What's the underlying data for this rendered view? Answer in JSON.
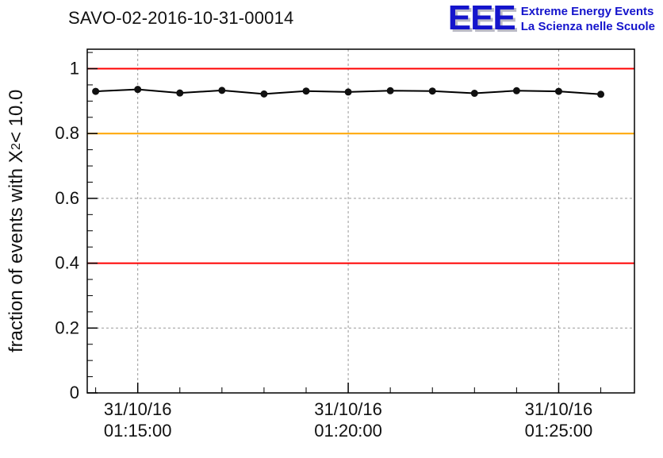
{
  "header": {
    "title": "SAVO-02-2016-10-31-00014",
    "logo": {
      "text": "EEE",
      "line1": "Extreme Energy Events",
      "line2": "La Scienza nelle Scuole",
      "color": "#1414cc"
    }
  },
  "ylabel": {
    "prefix": "fraction of events with X",
    "sup": "2",
    "suffix": " < 10.0"
  },
  "chart_data": {
    "type": "line",
    "title": "SAVO-02-2016-10-31-00014",
    "ylabel": "fraction of events with X^2 < 10.0",
    "xlabel": "",
    "ylim": [
      0,
      1.06
    ],
    "y_ticks": [
      0,
      0.2,
      0.4,
      0.6,
      0.8,
      1
    ],
    "y_minor_step": 0.05,
    "xlim_minutes": [
      73.8,
      86.8
    ],
    "x_minor_step": 1,
    "x_ticks": [
      {
        "minute": 75,
        "label_date": "31/10/16",
        "label_time": "01:15:00"
      },
      {
        "minute": 80,
        "label_date": "31/10/16",
        "label_time": "01:20:00"
      },
      {
        "minute": 85,
        "label_date": "31/10/16",
        "label_time": "01:25:00"
      }
    ],
    "grid": true,
    "grid_color": "#999999",
    "frame_color": "#000000",
    "ref_lines": [
      {
        "y": 1.0,
        "color": "#ff0000"
      },
      {
        "y": 0.8,
        "color": "#ffa500"
      },
      {
        "y": 0.4,
        "color": "#ff0000"
      }
    ],
    "series": [
      {
        "name": "fraction of events with chi2 < 10",
        "color": "#000000",
        "marker": "circle",
        "points": [
          {
            "time": "01:14:00",
            "minute": 74,
            "value": 0.93
          },
          {
            "time": "01:15:00",
            "minute": 75,
            "value": 0.936
          },
          {
            "time": "01:16:00",
            "minute": 76,
            "value": 0.925
          },
          {
            "time": "01:17:00",
            "minute": 77,
            "value": 0.933
          },
          {
            "time": "01:18:00",
            "minute": 78,
            "value": 0.922
          },
          {
            "time": "01:19:00",
            "minute": 79,
            "value": 0.931
          },
          {
            "time": "01:20:00",
            "minute": 80,
            "value": 0.928
          },
          {
            "time": "01:21:00",
            "minute": 81,
            "value": 0.932
          },
          {
            "time": "01:22:00",
            "minute": 82,
            "value": 0.931
          },
          {
            "time": "01:23:00",
            "minute": 83,
            "value": 0.924
          },
          {
            "time": "01:24:00",
            "minute": 84,
            "value": 0.932
          },
          {
            "time": "01:25:00",
            "minute": 85,
            "value": 0.93
          },
          {
            "time": "01:26:00",
            "minute": 86,
            "value": 0.921
          }
        ]
      }
    ]
  }
}
